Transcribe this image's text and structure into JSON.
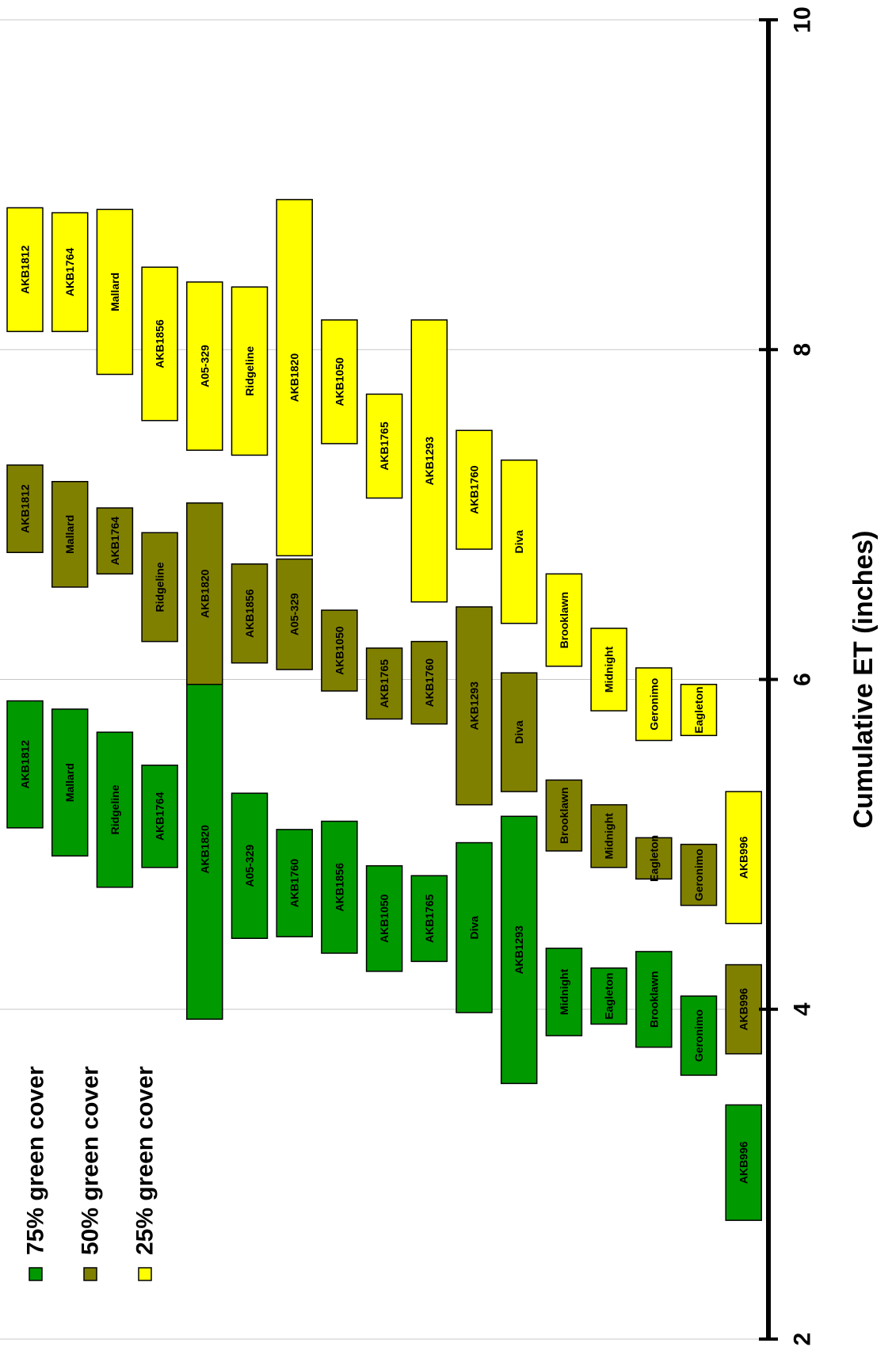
{
  "chart_data": {
    "type": "bar",
    "orientation": "floating-range",
    "xlabel": "Cumulative ET (inches)",
    "xlim": [
      2,
      10
    ],
    "ticks": [
      "2",
      "4",
      "6",
      "8",
      "10"
    ],
    "grid": true,
    "legend_position": "bottom-left",
    "colors": {
      "75": "#009900",
      "50": "#808000",
      "25": "#ffff00"
    },
    "legend": [
      {
        "key": "75",
        "label": "75% green cover"
      },
      {
        "key": "50",
        "label": "50% green cover"
      },
      {
        "key": "25",
        "label": "25% green cover"
      }
    ],
    "columns": [
      {
        "bars": [
          {
            "name": "AKB1812",
            "series": "75",
            "start": 5.1,
            "end": 5.87
          },
          {
            "name": "AKB1812",
            "series": "50",
            "start": 6.77,
            "end": 7.3
          },
          {
            "name": "AKB1812",
            "series": "25",
            "start": 8.11,
            "end": 8.86
          }
        ]
      },
      {
        "bars": [
          {
            "name": "Mallard",
            "series": "75",
            "start": 4.93,
            "end": 5.82
          },
          {
            "name": "Mallard",
            "series": "50",
            "start": 6.56,
            "end": 7.2
          },
          {
            "name": "AKB1764",
            "series": "25",
            "start": 8.11,
            "end": 8.83
          }
        ]
      },
      {
        "bars": [
          {
            "name": "Ridgeline",
            "series": "75",
            "start": 4.74,
            "end": 5.68
          },
          {
            "name": "AKB1764",
            "series": "50",
            "start": 6.64,
            "end": 7.04
          },
          {
            "name": "Mallard",
            "series": "25",
            "start": 7.85,
            "end": 8.85
          }
        ]
      },
      {
        "bars": [
          {
            "name": "AKB1764",
            "series": "75",
            "start": 4.86,
            "end": 5.48
          },
          {
            "name": "Ridgeline",
            "series": "50",
            "start": 6.23,
            "end": 6.89
          },
          {
            "name": "AKB1856",
            "series": "25",
            "start": 7.57,
            "end": 8.5
          }
        ]
      },
      {
        "bars": [
          {
            "name": "AKB1820",
            "series": "75",
            "start": 3.94,
            "end": 6.0
          },
          {
            "name": "AKB1820",
            "series": "50",
            "start": 5.97,
            "end": 7.07
          },
          {
            "name": "A05-329",
            "series": "25",
            "start": 7.39,
            "end": 8.41
          }
        ]
      },
      {
        "bars": [
          {
            "name": "A05-329",
            "series": "75",
            "start": 4.43,
            "end": 5.31
          },
          {
            "name": "AKB1856",
            "series": "50",
            "start": 6.1,
            "end": 6.7
          },
          {
            "name": "Ridgeline",
            "series": "25",
            "start": 7.36,
            "end": 8.38
          }
        ]
      },
      {
        "bars": [
          {
            "name": "AKB1760",
            "series": "75",
            "start": 4.44,
            "end": 5.09
          },
          {
            "name": "A05-329",
            "series": "50",
            "start": 6.06,
            "end": 6.73
          },
          {
            "name": "AKB1820",
            "series": "25",
            "start": 6.75,
            "end": 8.91
          }
        ]
      },
      {
        "bars": [
          {
            "name": "AKB1856",
            "series": "75",
            "start": 4.34,
            "end": 5.14
          },
          {
            "name": "AKB1050",
            "series": "50",
            "start": 5.93,
            "end": 6.42
          },
          {
            "name": "AKB1050",
            "series": "25",
            "start": 7.43,
            "end": 8.18
          }
        ]
      },
      {
        "bars": [
          {
            "name": "AKB1050",
            "series": "75",
            "start": 4.23,
            "end": 4.87
          },
          {
            "name": "AKB1765",
            "series": "50",
            "start": 5.76,
            "end": 6.19
          },
          {
            "name": "AKB1765",
            "series": "25",
            "start": 7.1,
            "end": 7.73
          }
        ]
      },
      {
        "bars": [
          {
            "name": "AKB1765",
            "series": "75",
            "start": 4.29,
            "end": 4.81
          },
          {
            "name": "AKB1760",
            "series": "50",
            "start": 5.73,
            "end": 6.23
          },
          {
            "name": "AKB1293",
            "series": "25",
            "start": 6.47,
            "end": 8.18
          }
        ]
      },
      {
        "bars": [
          {
            "name": "Diva",
            "series": "75",
            "start": 3.98,
            "end": 5.01
          },
          {
            "name": "AKB1293",
            "series": "50",
            "start": 5.24,
            "end": 6.44
          },
          {
            "name": "AKB1760",
            "series": "25",
            "start": 6.79,
            "end": 7.51
          }
        ]
      },
      {
        "bars": [
          {
            "name": "AKB1293",
            "series": "75",
            "start": 3.55,
            "end": 5.17
          },
          {
            "name": "Diva",
            "series": "50",
            "start": 5.32,
            "end": 6.04
          },
          {
            "name": "Diva",
            "series": "25",
            "start": 6.34,
            "end": 7.33
          }
        ]
      },
      {
        "bars": [
          {
            "name": "Midnight",
            "series": "75",
            "start": 3.84,
            "end": 4.37
          },
          {
            "name": "Brooklawn",
            "series": "50",
            "start": 4.96,
            "end": 5.39
          },
          {
            "name": "Brooklawn",
            "series": "25",
            "start": 6.08,
            "end": 6.64
          }
        ]
      },
      {
        "bars": [
          {
            "name": "Eagleton",
            "series": "75",
            "start": 3.91,
            "end": 4.25
          },
          {
            "name": "Midnight",
            "series": "50",
            "start": 4.86,
            "end": 5.24
          },
          {
            "name": "Midnight",
            "series": "25",
            "start": 5.81,
            "end": 6.31
          }
        ]
      },
      {
        "bars": [
          {
            "name": "Brooklawn",
            "series": "75",
            "start": 3.77,
            "end": 4.35
          },
          {
            "name": "Eagleton",
            "series": "50",
            "start": 4.79,
            "end": 5.04
          },
          {
            "name": "Geronimo",
            "series": "25",
            "start": 5.63,
            "end": 6.07
          }
        ]
      },
      {
        "bars": [
          {
            "name": "Geronimo",
            "series": "75",
            "start": 3.6,
            "end": 4.08
          },
          {
            "name": "Geronimo",
            "series": "50",
            "start": 4.63,
            "end": 5.0
          },
          {
            "name": "Eagleton",
            "series": "25",
            "start": 5.66,
            "end": 5.97
          }
        ]
      },
      {
        "bars": [
          {
            "name": "AKB996",
            "series": "75",
            "start": 2.72,
            "end": 3.42
          },
          {
            "name": "AKB996",
            "series": "50",
            "start": 3.73,
            "end": 4.27
          },
          {
            "name": "AKB996",
            "series": "25",
            "start": 4.52,
            "end": 5.32
          }
        ]
      }
    ]
  }
}
